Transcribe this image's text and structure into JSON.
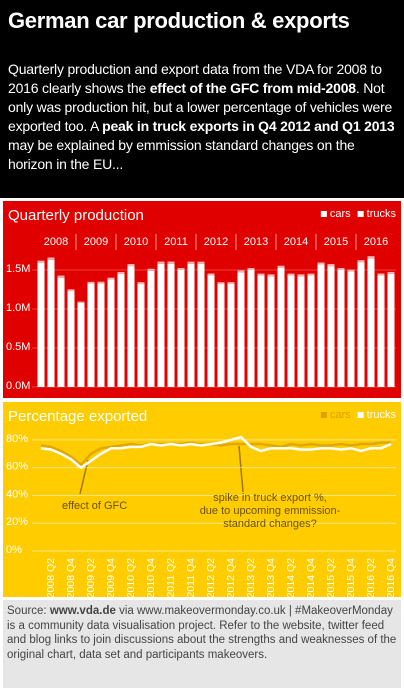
{
  "header": {
    "title": "German car production & exports",
    "intro": [
      "Quarterly production and export data from the VDA for 2008 to 2016 clearly shows the ",
      "effect of the GFC from mid-2008",
      ". Not only was production hit, but a lower percentage of vehicles were exported too. A ",
      "peak in truck exports in Q4 2012 and Q1 2013",
      " may be explained by emmission standard changes on the horizon in the EU..."
    ]
  },
  "chart_data": [
    {
      "type": "bar",
      "title": "Quarterly production",
      "stacked": true,
      "year_labels": [
        2008,
        2009,
        2010,
        2011,
        2012,
        2013,
        2014,
        2015,
        2016
      ],
      "categories": [
        null,
        "2008 Q2",
        null,
        "2008 Q4",
        null,
        "2009 Q2",
        null,
        "2009 Q4",
        null,
        "2010 Q2",
        null,
        "2010 Q4",
        null,
        "2011 Q2",
        null,
        "2011 Q4",
        null,
        "2012 Q2",
        null,
        "2012 Q4",
        null,
        "2013 Q2",
        null,
        "2013 Q4",
        null,
        "2014 Q2",
        null,
        "2014 Q4",
        null,
        "2015 Q2",
        null,
        "2015 Q4",
        null,
        "2016 Q2",
        null,
        "2016 Q4"
      ],
      "series": [
        {
          "name": "cars",
          "color": "#ffffff",
          "values": [
            1590000,
            1630000,
            1400000,
            1230000,
            1080000,
            1330000,
            1330000,
            1380000,
            1450000,
            1550000,
            1320000,
            1490000,
            1580000,
            1580000,
            1500000,
            1580000,
            1580000,
            1430000,
            1320000,
            1320000,
            1470000,
            1500000,
            1430000,
            1420000,
            1530000,
            1430000,
            1420000,
            1430000,
            1570000,
            1550000,
            1500000,
            1480000,
            1600000,
            1650000,
            1430000,
            1450000
          ]
        },
        {
          "name": "trucks",
          "color": "#f6b6b6",
          "values": [
            30000,
            30000,
            28000,
            22000,
            15000,
            18000,
            20000,
            22000,
            24000,
            26000,
            24000,
            26000,
            28000,
            28000,
            26000,
            27000,
            27000,
            25000,
            23000,
            24000,
            25000,
            25000,
            24000,
            24000,
            25000,
            24000,
            24000,
            24000,
            26000,
            26000,
            25000,
            25000,
            26000,
            27000,
            25000,
            25000
          ]
        }
      ],
      "ylim": [
        0,
        1800000
      ],
      "yticks": [
        {
          "value": 0,
          "label": "0.0M"
        },
        {
          "value": 500000,
          "label": "0.5M"
        },
        {
          "value": 1000000,
          "label": "1.0M"
        },
        {
          "value": 1500000,
          "label": "1.5M"
        }
      ],
      "grid": true,
      "legend": "top-right"
    },
    {
      "type": "line",
      "title": "Percentage exported",
      "categories": [
        null,
        "2008 Q2",
        null,
        "2008 Q4",
        null,
        "2009 Q2",
        null,
        "2009 Q4",
        null,
        "2010 Q2",
        null,
        "2010 Q4",
        null,
        "2011 Q2",
        null,
        "2011 Q4",
        null,
        "2012 Q2",
        null,
        "2012 Q4",
        null,
        "2013 Q2",
        null,
        "2013 Q4",
        null,
        "2014 Q2",
        null,
        "2014 Q4",
        null,
        "2015 Q2",
        null,
        "2015 Q4",
        null,
        "2016 Q2",
        null,
        "2016 Q4"
      ],
      "series": [
        {
          "name": "cars",
          "color": "#e0a800",
          "values": [
            76,
            75,
            72,
            68,
            62,
            70,
            74,
            75,
            76,
            77,
            76,
            77,
            77,
            77,
            77,
            78,
            77,
            77,
            76,
            77,
            77,
            77,
            77,
            76,
            75,
            77,
            76,
            77,
            76,
            76,
            77,
            76,
            77,
            77,
            78,
            78
          ]
        },
        {
          "name": "trucks",
          "color": "#ffffff",
          "values": [
            74,
            73,
            70,
            66,
            60,
            65,
            70,
            74,
            74,
            75,
            75,
            77,
            76,
            77,
            76,
            77,
            76,
            77,
            78,
            80,
            82,
            75,
            72,
            74,
            74,
            74,
            73,
            73,
            74,
            74,
            73,
            74,
            72,
            74,
            74,
            77
          ]
        }
      ],
      "ylim": [
        0,
        90
      ],
      "yticks": [
        {
          "value": 0,
          "label": "0%"
        },
        {
          "value": 20,
          "label": "20%"
        },
        {
          "value": 40,
          "label": "40%"
        },
        {
          "value": 60,
          "label": "60%"
        },
        {
          "value": 80,
          "label": "80%"
        }
      ],
      "grid": true,
      "legend": "top-right",
      "annotations": [
        [
          "effect of GFC"
        ],
        [
          "spike in truck export %,",
          "due to upcoming emmission-",
          "standard changes?"
        ]
      ]
    }
  ],
  "footer": [
    "Source: ",
    "www.vda.de",
    " via www.makeovermonday.co.uk | #MakeoverMonday is a community data visualisation project. Refer to the website, twitter feed and blog links to join discussions about the strengths and weaknesses of the original chart, data set and participants makeovers."
  ]
}
